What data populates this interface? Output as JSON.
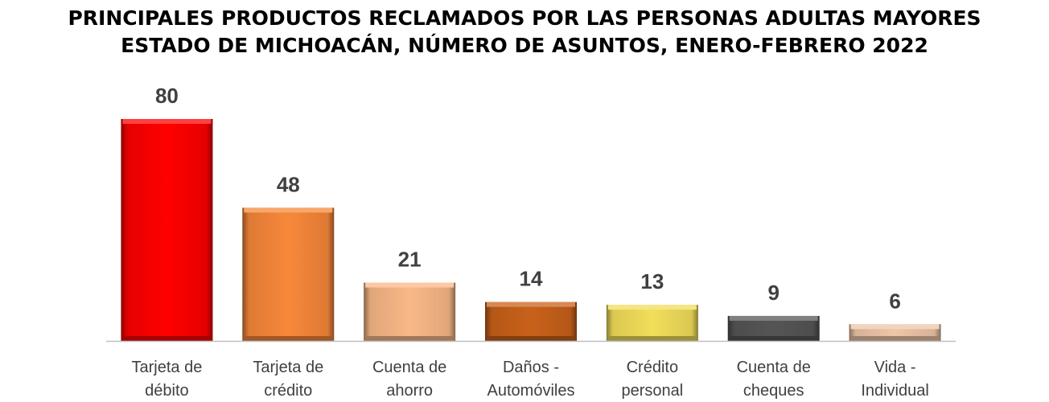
{
  "chart_data": {
    "type": "bar",
    "title": "PRINCIPALES PRODUCTOS RECLAMADOS POR LAS PERSONAS ADULTAS MAYORES",
    "subtitle": "ESTADO DE MICHOACÁN, NÚMERO DE ASUNTOS, ENERO-FEBRERO 2022",
    "categories": [
      [
        "Tarjeta de",
        "débito"
      ],
      [
        "Tarjeta de",
        "crédito"
      ],
      [
        "Cuenta de",
        "ahorro"
      ],
      [
        "Daños -",
        "Automóviles"
      ],
      [
        "Crédito",
        "personal"
      ],
      [
        "Cuenta de",
        "cheques"
      ],
      [
        "Vida -",
        "Individual"
      ]
    ],
    "values": [
      80,
      48,
      21,
      14,
      13,
      9,
      6
    ],
    "colors": [
      "#ff0000",
      "#f7883a",
      "#f9b887",
      "#c8611a",
      "#f2de5a",
      "#555555",
      "#eec6a8"
    ],
    "ylim": [
      0,
      80
    ],
    "grid": false,
    "legend": "none"
  }
}
